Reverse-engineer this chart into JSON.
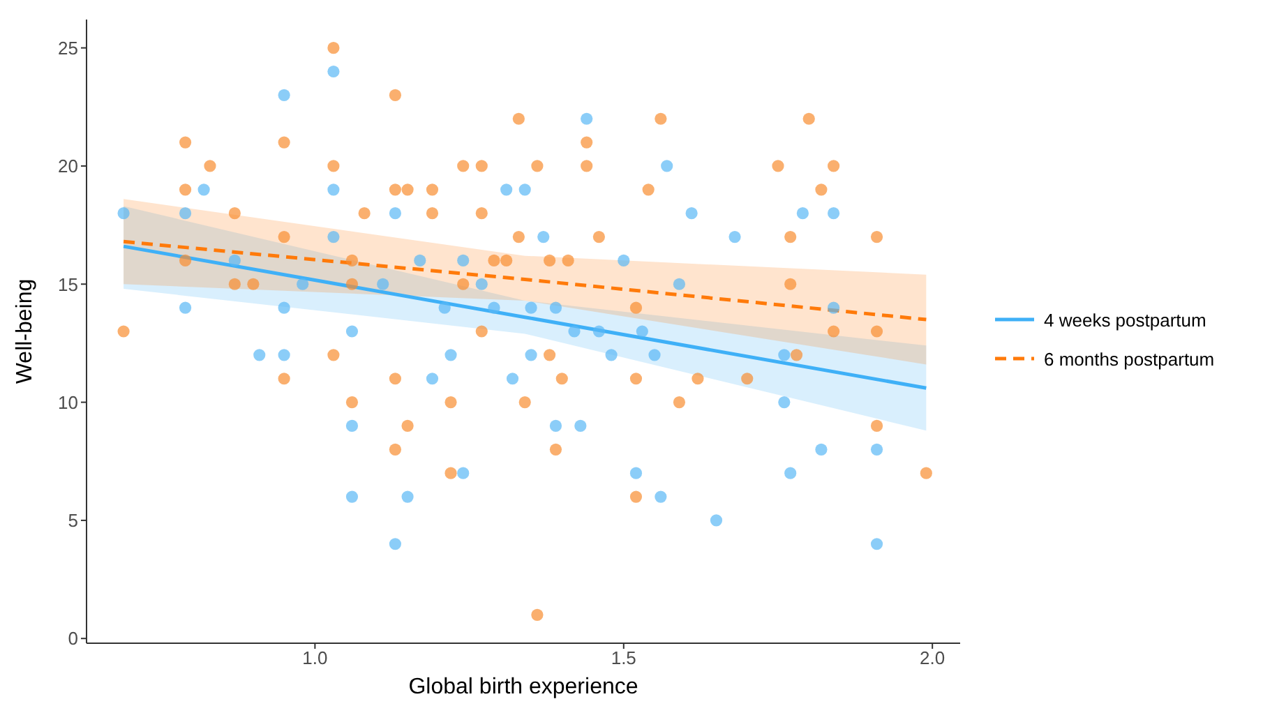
{
  "chart_data": {
    "type": "scatter",
    "xlabel": "Global birth experience",
    "ylabel": "Well-being",
    "xlim": [
      0.63,
      2.045
    ],
    "xticks": [
      {
        "value": 1.0,
        "label": "1.0"
      },
      {
        "value": 1.5,
        "label": "1.5"
      },
      {
        "value": 2.0,
        "label": "2.0"
      }
    ],
    "ylim": [
      -0.2,
      26.2
    ],
    "yticks": [
      0,
      5,
      10,
      15,
      20,
      25
    ],
    "grid": false,
    "legend": "right",
    "series": [
      {
        "color": "#5ab8f5",
        "marker": "circle",
        "x": [
          0.69,
          0.79,
          0.79,
          0.82,
          0.87,
          0.91,
          0.95,
          0.95,
          0.95,
          0.98,
          1.03,
          1.03,
          1.03,
          1.06,
          1.06,
          1.06,
          1.11,
          1.13,
          1.13,
          1.15,
          1.17,
          1.19,
          1.21,
          1.22,
          1.24,
          1.24,
          1.27,
          1.29,
          1.31,
          1.32,
          1.34,
          1.35,
          1.35,
          1.37,
          1.39,
          1.39,
          1.42,
          1.43,
          1.44,
          1.46,
          1.48,
          1.5,
          1.52,
          1.53,
          1.55,
          1.56,
          1.57,
          1.59,
          1.61,
          1.65,
          1.68,
          1.76,
          1.76,
          1.77,
          1.79,
          1.82,
          1.84,
          1.84,
          1.91,
          1.91
        ],
        "values": [
          18,
          18,
          14,
          19,
          16,
          12,
          23,
          14,
          12,
          15,
          24,
          19,
          17,
          13,
          9,
          6,
          15,
          18,
          4,
          6,
          16,
          11,
          14,
          12,
          16,
          7,
          15,
          14,
          19,
          11,
          19,
          14,
          12,
          17,
          9,
          14,
          13,
          9,
          22,
          13,
          12,
          16,
          7,
          13,
          12,
          6,
          20,
          15,
          18,
          5,
          17,
          12,
          10,
          7,
          18,
          8,
          18,
          14,
          8,
          4
        ]
      },
      {
        "color": "#f88d30",
        "marker": "circle",
        "x": [
          0.69,
          0.79,
          0.79,
          0.79,
          0.83,
          0.87,
          0.87,
          0.9,
          0.95,
          0.95,
          0.95,
          1.03,
          1.03,
          1.03,
          1.06,
          1.06,
          1.06,
          1.08,
          1.13,
          1.13,
          1.13,
          1.13,
          1.15,
          1.15,
          1.19,
          1.19,
          1.22,
          1.22,
          1.24,
          1.24,
          1.27,
          1.27,
          1.27,
          1.29,
          1.31,
          1.33,
          1.33,
          1.34,
          1.36,
          1.36,
          1.38,
          1.38,
          1.39,
          1.4,
          1.41,
          1.44,
          1.44,
          1.46,
          1.52,
          1.52,
          1.52,
          1.54,
          1.56,
          1.59,
          1.62,
          1.7,
          1.75,
          1.77,
          1.77,
          1.78,
          1.8,
          1.82,
          1.84,
          1.84,
          1.91,
          1.91,
          1.91,
          1.99
        ],
        "values": [
          13,
          21,
          19,
          16,
          20,
          18,
          15,
          15,
          21,
          17,
          11,
          25,
          20,
          12,
          16,
          15,
          10,
          18,
          23,
          19,
          11,
          8,
          19,
          9,
          19,
          18,
          10,
          7,
          20,
          15,
          20,
          18,
          13,
          16,
          16,
          22,
          17,
          10,
          20,
          1,
          16,
          12,
          8,
          11,
          16,
          21,
          20,
          17,
          14,
          11,
          6,
          19,
          22,
          10,
          11,
          11,
          20,
          17,
          15,
          12,
          22,
          19,
          20,
          13,
          17,
          13,
          9,
          7
        ]
      },
      {
        "type": "line",
        "name": "4 weeks postpartum",
        "color": "#3fb0f7",
        "marker": "none",
        "line_style": "solid",
        "x": [
          0.69,
          1.34,
          1.99
        ],
        "values": [
          16.6,
          13.6,
          10.6
        ],
        "lower": [
          14.8,
          12.9,
          8.8
        ],
        "upper": [
          18.3,
          14.3,
          12.4
        ]
      },
      {
        "type": "line",
        "name": "6 months postpartum",
        "color": "#ff7a0a",
        "marker": "none",
        "line_style": "dashed",
        "x": [
          0.69,
          1.34,
          1.99
        ],
        "values": [
          16.8,
          15.2,
          13.5
        ],
        "lower": [
          15.0,
          14.3,
          11.6
        ],
        "upper": [
          18.6,
          16.2,
          15.4
        ]
      }
    ]
  }
}
